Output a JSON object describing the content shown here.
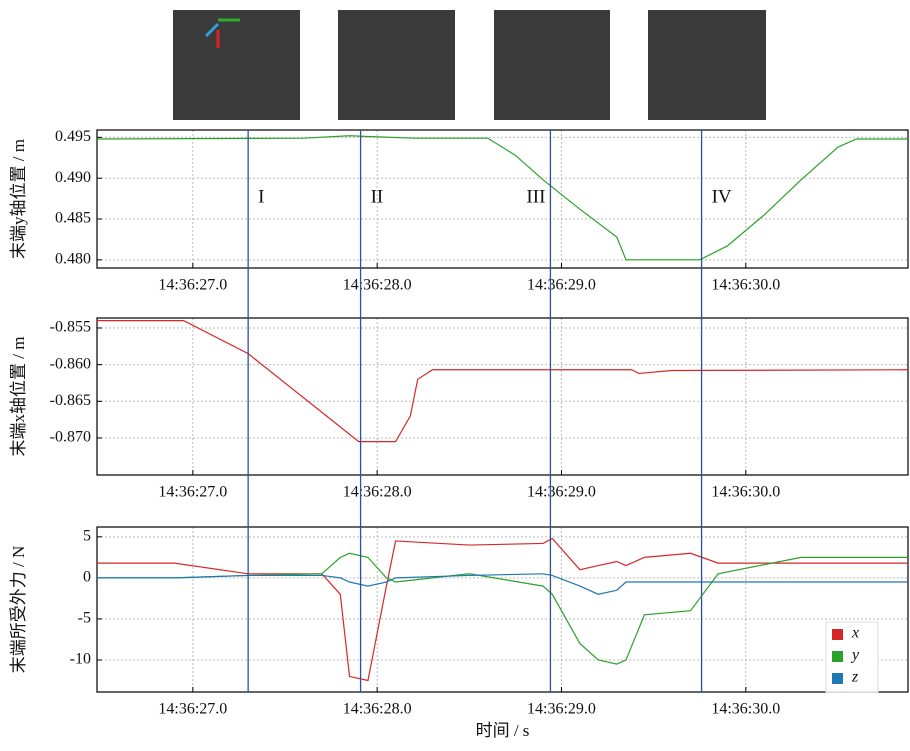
{
  "chart_data": [
    {
      "type": "line",
      "ylabel": "末端y轴位置 / m",
      "x": [
        26.48,
        27.6,
        27.85,
        27.95,
        28.2,
        28.6,
        28.75,
        28.9,
        29.1,
        29.3,
        29.35,
        29.5,
        29.75,
        29.9,
        30.1,
        30.3,
        30.5,
        30.6,
        30.88
      ],
      "series": [
        {
          "name": "y",
          "color": "#2ca02c",
          "values": [
            0.4948,
            0.4949,
            0.4952,
            0.4951,
            0.4949,
            0.4949,
            0.4928,
            0.4898,
            0.4862,
            0.4828,
            0.48,
            0.48,
            0.48,
            0.4817,
            0.4855,
            0.4898,
            0.4938,
            0.4948,
            0.4948
          ]
        }
      ],
      "xlim": [
        26.48,
        30.88
      ],
      "xticks": [
        {
          "value": 27,
          "label": "14:36:27.0"
        },
        {
          "value": 28,
          "label": "14:36:28.0"
        },
        {
          "value": 29,
          "label": "14:36:29.0"
        },
        {
          "value": 30,
          "label": "14:36:30.0"
        }
      ],
      "ylim": [
        0.479,
        0.4959
      ],
      "yticks": [
        {
          "value": 0.48,
          "label": "0.480"
        },
        0.485,
        {
          "value": 0.49,
          "label": "0.490"
        },
        0.495
      ],
      "grid": true
    },
    {
      "type": "line",
      "ylabel": "末端x轴位置 / m",
      "x": [
        26.48,
        26.95,
        27.3,
        27.9,
        28.1,
        28.18,
        28.22,
        28.3,
        29.0,
        29.38,
        29.42,
        29.6,
        30.88
      ],
      "series": [
        {
          "name": "x",
          "color": "#d62728",
          "values": [
            -0.854,
            -0.854,
            -0.8585,
            -0.8705,
            -0.8705,
            -0.867,
            -0.862,
            -0.8607,
            -0.8607,
            -0.8607,
            -0.8612,
            -0.8608,
            -0.8607
          ]
        }
      ],
      "xlim": [
        26.48,
        30.88
      ],
      "xticks": [
        {
          "value": 27,
          "label": "14:36:27.0"
        },
        {
          "value": 28,
          "label": "14:36:28.0"
        },
        {
          "value": 29,
          "label": "14:36:29.0"
        },
        {
          "value": 30,
          "label": "14:36:30.0"
        }
      ],
      "ylim": [
        -0.87505,
        -0.85364
      ],
      "yticks": [
        -0.855,
        {
          "value": -0.86,
          "label": "-0.860"
        },
        -0.865,
        {
          "value": -0.87,
          "label": "-0.870"
        }
      ],
      "grid": true
    },
    {
      "type": "line",
      "ylabel": "末端所受外力 / N",
      "xlabel": "时间 / s",
      "x": [
        26.48,
        26.9,
        27.3,
        27.7,
        27.8,
        27.85,
        27.95,
        28.05,
        28.1,
        28.5,
        28.9,
        28.95,
        29.1,
        29.2,
        29.3,
        29.35,
        29.45,
        29.7,
        29.85,
        30.3,
        30.88
      ],
      "series": [
        {
          "name": "x",
          "color": "#d62728",
          "values": [
            1.8,
            1.8,
            0.5,
            0.5,
            -2,
            -12,
            -12.5,
            -1,
            4.5,
            4,
            4.2,
            4.8,
            1,
            1.5,
            2,
            1.5,
            2.5,
            3,
            1.8,
            1.8,
            1.8
          ]
        },
        {
          "name": "y",
          "color": "#2ca02c",
          "values": [
            0,
            0,
            0.3,
            0.5,
            2.5,
            3,
            2.5,
            0,
            -0.5,
            0.5,
            -1,
            -2,
            -8,
            -10,
            -10.5,
            -10,
            -4.5,
            -4,
            0.5,
            2.5,
            2.5
          ]
        },
        {
          "name": "z",
          "color": "#1f77b4",
          "values": [
            0,
            0,
            0.3,
            0.3,
            0,
            -0.5,
            -1,
            -0.5,
            0,
            0.3,
            0.5,
            0.3,
            -1,
            -2,
            -1.5,
            -0.5,
            -0.5,
            -0.5,
            -0.5,
            -0.5,
            -0.5
          ]
        }
      ],
      "xlim": [
        26.48,
        30.88
      ],
      "xticks": [
        {
          "value": 27,
          "label": "14:36:27.0"
        },
        {
          "value": 28,
          "label": "14:36:28.0"
        },
        {
          "value": 29,
          "label": "14:36:29.0"
        },
        {
          "value": 30,
          "label": "14:36:30.0"
        }
      ],
      "ylim": [
        -13.9,
        6.2
      ],
      "yticks": [
        5,
        0,
        -5,
        -10
      ],
      "grid": true,
      "legend": "lower right"
    }
  ],
  "events": [
    {
      "value": 27.3,
      "label": "I"
    },
    {
      "value": 27.91,
      "label": "II"
    },
    {
      "value": 28.94,
      "label": "III"
    },
    {
      "value": 29.76,
      "label": "IV"
    }
  ]
}
